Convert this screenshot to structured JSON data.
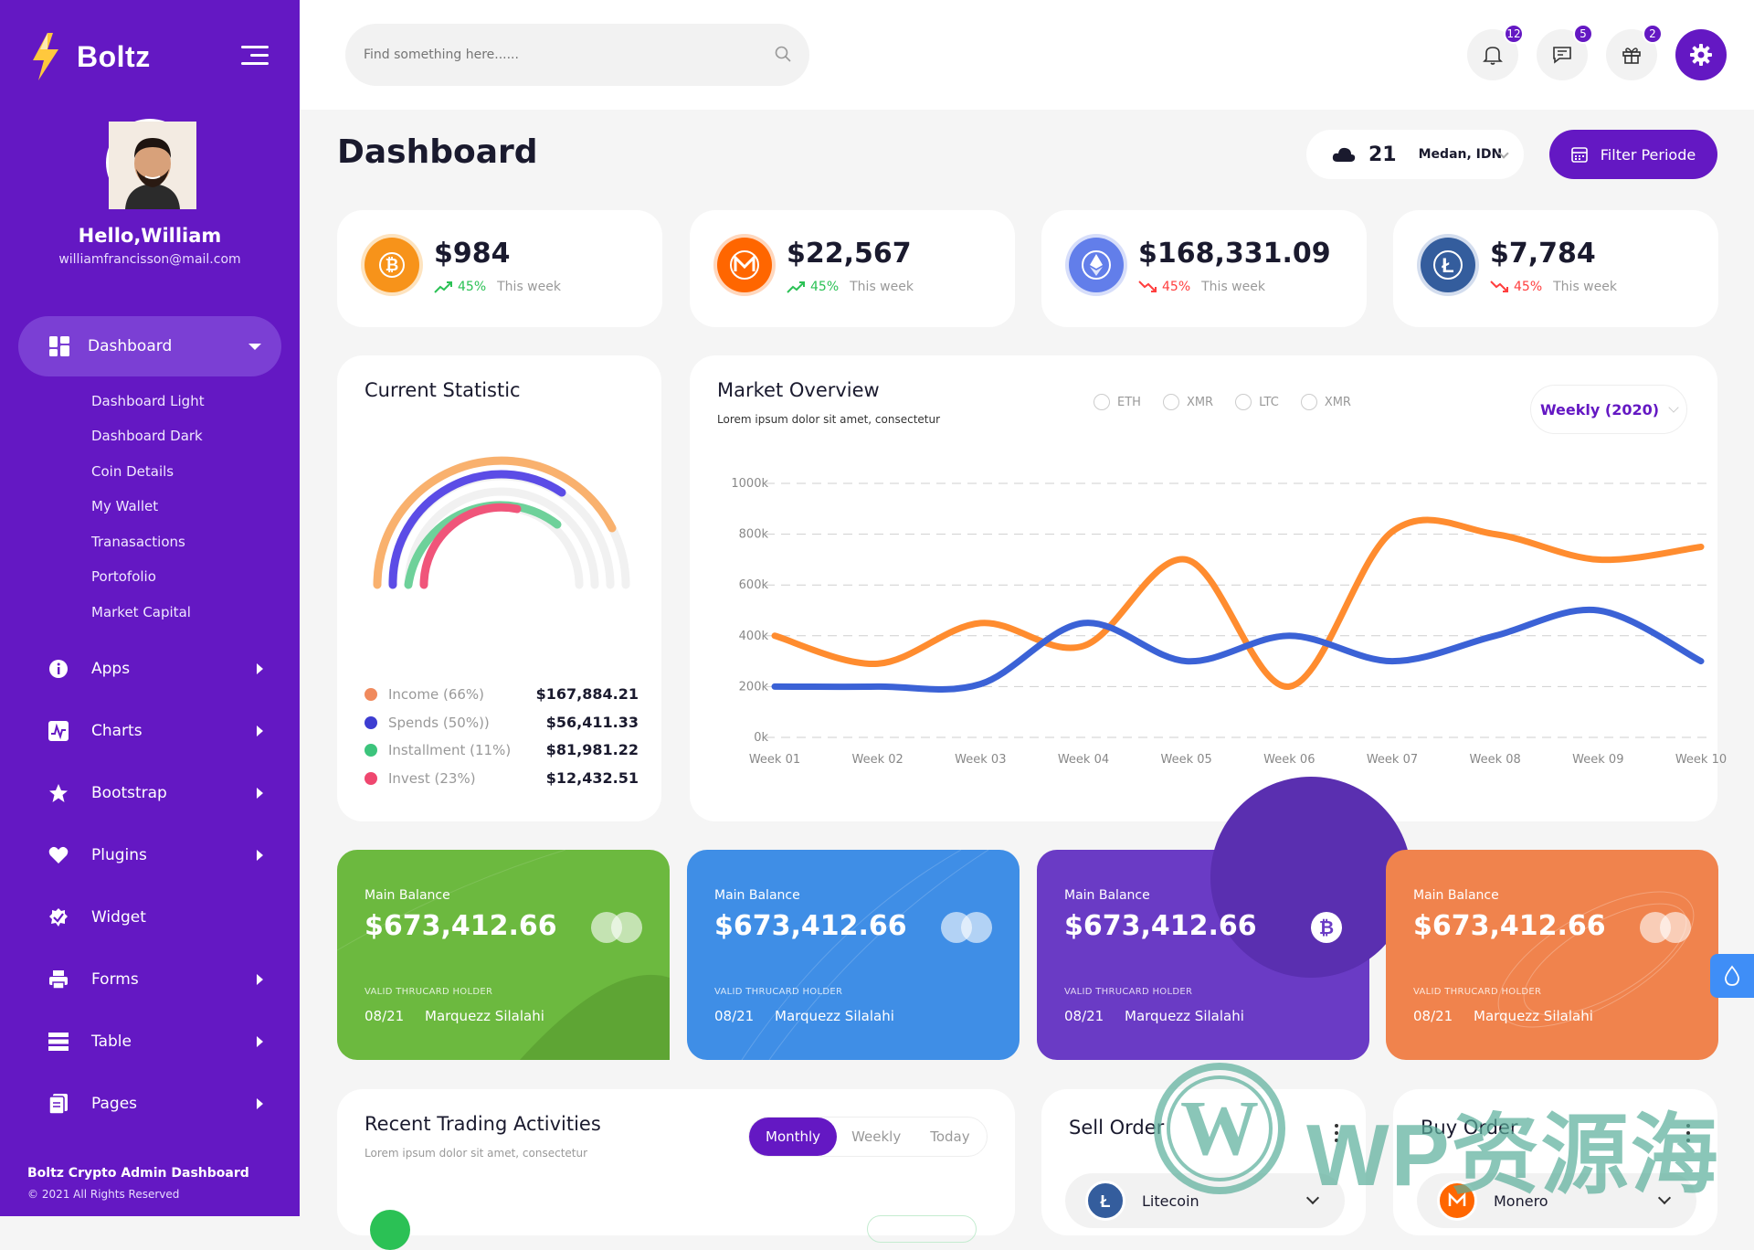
{
  "brand": {
    "name": "Boltz"
  },
  "user": {
    "greeting": "Hello,William",
    "email": "williamfrancisson@mail.com"
  },
  "sidebar": {
    "active": {
      "label": "Dashboard"
    },
    "sub_items": [
      "Dashboard Light",
      "Dashboard Dark",
      "Coin Details",
      "My Wallet",
      "Tranasactions",
      "Portofolio",
      "Market Capital"
    ],
    "items": [
      {
        "label": "Apps",
        "icon": "info-icon"
      },
      {
        "label": "Charts",
        "icon": "chart-icon"
      },
      {
        "label": "Bootstrap",
        "icon": "star-icon"
      },
      {
        "label": "Plugins",
        "icon": "heart-icon"
      },
      {
        "label": "Widget",
        "icon": "widget-icon"
      },
      {
        "label": "Forms",
        "icon": "printer-icon"
      },
      {
        "label": "Table",
        "icon": "table-icon"
      },
      {
        "label": "Pages",
        "icon": "pages-icon"
      }
    ],
    "footer_title": "Boltz Crypto Admin Dashboard",
    "footer_copy": "© 2021 All Rights Reserved"
  },
  "header": {
    "search_placeholder": "Find something here......",
    "notifications_count": "12",
    "messages_count": "5",
    "gifts_count": "2"
  },
  "page": {
    "title": "Dashboard"
  },
  "weather": {
    "temp": "21",
    "city": "Medan, IDN"
  },
  "filter_button": "Filter Periode",
  "coins": [
    {
      "amount": "$984",
      "pct": "45%",
      "period": "This week",
      "trend": "up",
      "color": "#f7931a",
      "icon": "bitcoin-icon"
    },
    {
      "amount": "$22,567",
      "pct": "45%",
      "period": "This week",
      "trend": "up",
      "color": "#ff6600",
      "icon": "monero-icon"
    },
    {
      "amount": "$168,331.09",
      "pct": "45%",
      "period": "This week",
      "trend": "down",
      "color": "#627eea",
      "icon": "ethereum-icon"
    },
    {
      "amount": "$7,784",
      "pct": "45%",
      "period": "This week",
      "trend": "down",
      "color": "#345d9d",
      "icon": "litecoin-icon"
    }
  ],
  "current_statistic": {
    "title": "Current Statistic",
    "legend": [
      {
        "label": "Income (66%)",
        "value": "$167,884.21",
        "color": "#f4a261",
        "pct": 66
      },
      {
        "label": "Spends (50%))",
        "value": "$56,411.33",
        "color": "#3d3dd1",
        "pct": 50
      },
      {
        "label": "Installment (11%)",
        "value": "$81,981.22",
        "color": "#3cc47c",
        "pct": 11
      },
      {
        "label": "Invest (23%)",
        "value": "$12,432.51",
        "color": "#ef476f",
        "pct": 23
      }
    ]
  },
  "market_overview": {
    "title": "Market Overview",
    "subtitle": "Lorem ipsum dolor sit amet, consectetur",
    "filters": [
      "ETH",
      "XMR",
      "LTC",
      "XMR"
    ],
    "period_select": "Weekly (2020)"
  },
  "chart_data": {
    "type": "line",
    "title": "Market Overview",
    "categories": [
      "Week 01",
      "Week 02",
      "Week 03",
      "Week 04",
      "Week 05",
      "Week 06",
      "Week 07",
      "Week 08",
      "Week 09",
      "Week 10"
    ],
    "y_ticks": [
      "0k",
      "200k",
      "400k",
      "600k",
      "800k",
      "1000k"
    ],
    "ylim": [
      0,
      1000
    ],
    "series": [
      {
        "name": "orange",
        "color": "#ff8c2f",
        "values": [
          400,
          290,
          450,
          360,
          700,
          200,
          810,
          800,
          700,
          750
        ]
      },
      {
        "name": "blue",
        "color": "#3b62d6",
        "values": [
          200,
          200,
          210,
          450,
          300,
          400,
          300,
          400,
          500,
          300
        ]
      }
    ]
  },
  "balances": [
    {
      "label": "Main Balance",
      "amount": "$673,412.66",
      "holder": "VALID THRUCARD HOLDER",
      "exp": "08/21",
      "name": "Marquezz Silalahi",
      "bg": "#6cb93f",
      "mark": "mastercard"
    },
    {
      "label": "Main Balance",
      "amount": "$673,412.66",
      "holder": "VALID THRUCARD HOLDER",
      "exp": "08/21",
      "name": "Marquezz Silalahi",
      "bg": "#3f8ee6",
      "mark": "mastercard"
    },
    {
      "label": "Main Balance",
      "amount": "$673,412.66",
      "holder": "VALID THRUCARD HOLDER",
      "exp": "08/21",
      "name": "Marquezz Silalahi",
      "bg": "#6a3bc5",
      "mark": "bitcoin"
    },
    {
      "label": "Main Balance",
      "amount": "$673,412.66",
      "holder": "VALID THRUCARD HOLDER",
      "exp": "08/21",
      "name": "Marquezz Silalahi",
      "bg": "#f0834d",
      "mark": "mastercard"
    }
  ],
  "recent_trading": {
    "title": "Recent Trading Activities",
    "subtitle": "Lorem ipsum dolor sit amet, consectetur",
    "tabs": [
      "Monthly",
      "Weekly",
      "Today"
    ]
  },
  "sell_order": {
    "title": "Sell Order",
    "coin": "Litecoin"
  },
  "buy_order": {
    "title": "Buy Order",
    "coin": "Monero"
  },
  "watermark": {
    "text": "WP资源海"
  }
}
